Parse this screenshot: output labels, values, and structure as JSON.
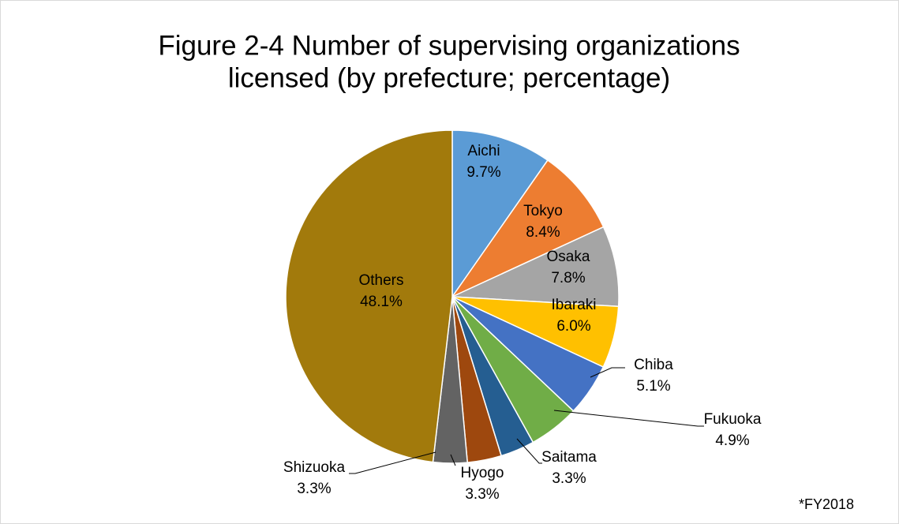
{
  "chart_data": {
    "type": "pie",
    "title": [
      "Figure 2-4 Number of supervising organizations",
      "licensed (by prefecture; percentage)"
    ],
    "categories": [
      "Aichi",
      "Tokyo",
      "Osaka",
      "Ibaraki",
      "Chiba",
      "Fukuoka",
      "Saitama",
      "Hyogo",
      "Shizuoka",
      "Others"
    ],
    "values": [
      9.7,
      8.4,
      7.8,
      6.0,
      5.1,
      4.9,
      3.3,
      3.3,
      3.3,
      48.1
    ],
    "value_labels": [
      "9.7%",
      "8.4%",
      "7.8%",
      "6.0%",
      "5.1%",
      "4.9%",
      "3.3%",
      "3.3%",
      "3.3%",
      "48.1%"
    ],
    "colors": [
      "#5b9bd5",
      "#ed7d31",
      "#a5a5a5",
      "#ffc000",
      "#4472c4",
      "#70ad47",
      "#255e91",
      "#9e480e",
      "#636363",
      "#a27a0c"
    ],
    "note": "*FY2018"
  }
}
